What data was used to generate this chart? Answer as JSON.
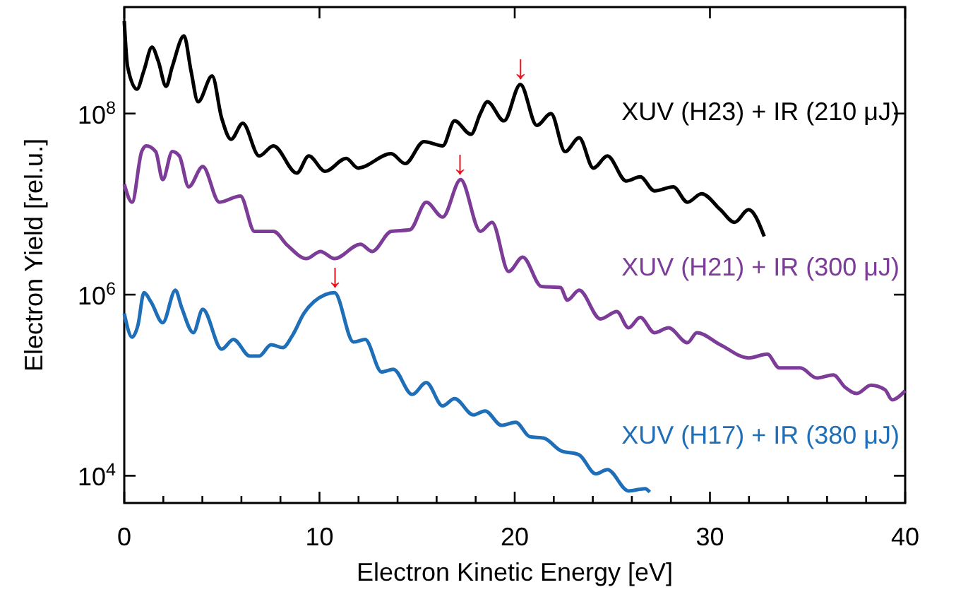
{
  "chart_data": {
    "type": "line",
    "xlabel": "Electron Kinetic Energy [eV]",
    "ylabel": "Electron Yield [rel.u.]",
    "log": "y",
    "xlim": [
      0,
      40
    ],
    "xticks": [
      0,
      {
        "value": 2,
        "label": null
      },
      {
        "value": 4,
        "label": null
      },
      {
        "value": 6,
        "label": null
      },
      {
        "value": 8,
        "label": null
      },
      10,
      {
        "value": 12,
        "label": null
      },
      {
        "value": 14,
        "label": null
      },
      {
        "value": 16,
        "label": null
      },
      {
        "value": 18,
        "label": null
      },
      20,
      {
        "value": 22,
        "label": null
      },
      {
        "value": 24,
        "label": null
      },
      {
        "value": 26,
        "label": null
      },
      {
        "value": 28,
        "label": null
      },
      30,
      {
        "value": 32,
        "label": null
      },
      {
        "value": 34,
        "label": null
      },
      {
        "value": 36,
        "label": null
      },
      {
        "value": 38,
        "label": null
      },
      40
    ],
    "ylim": [
      5000,
      1500000000
    ],
    "yticks": [
      {
        "value": 10000,
        "label": "10$^{4}$"
      },
      {
        "value": 1000000,
        "label": "10$^{6}$"
      },
      {
        "value": 100000000,
        "label": "10$^{8}$"
      }
    ],
    "series": [
      {
        "name": "XUV (H23) + IR (210 μJ)",
        "color": "#000000",
        "x": [
          0,
          0.17,
          0.65,
          1.0,
          1.42,
          1.74,
          2.14,
          2.46,
          3.06,
          3.42,
          3.78,
          4.5,
          4.99,
          5.47,
          6.07,
          6.91,
          7.64,
          8.84,
          9.45,
          10.29,
          11.37,
          11.97,
          13.67,
          14.39,
          15.35,
          16.31,
          16.92,
          17.76,
          18.24,
          18.6,
          19.45,
          20.29,
          21.13,
          21.86,
          22.58,
          23.3,
          24.03,
          24.75,
          25.71,
          26.43,
          27.16,
          28.12,
          28.85,
          29.57,
          30.53,
          31.26,
          31.98,
          32.78
        ],
        "values": [
          1050000000.0,
          330000000.0,
          186000000.0,
          295000000.0,
          540000000.0,
          380000000.0,
          200000000.0,
          330000000.0,
          720000000.0,
          295000000.0,
          135000000.0,
          260000000.0,
          89000000.0,
          52000000.0,
          78000000.0,
          34000000.0,
          44000000.0,
          22000000.0,
          34000000.0,
          23000000.0,
          32000000.0,
          25000000.0,
          36000000.0,
          28000000.0,
          49000000.0,
          44000000.0,
          83000000.0,
          59000000.0,
          100000000.0,
          135000000.0,
          83000000.0,
          210000000.0,
          74000000.0,
          100000000.0,
          38000000.0,
          54000000.0,
          25000000.0,
          34000000.0,
          18000000.0,
          20000000.0,
          14000000.0,
          15500000.0,
          10500000.0,
          13000000.0,
          8700000.0,
          6300000.0,
          8700000.0,
          4400000.0
        ]
      },
      {
        "name": "XUV (H21) + IR (300 μJ)",
        "color": "#7d3c98",
        "x": [
          0,
          0.4,
          0.89,
          1.13,
          1.61,
          1.97,
          2.46,
          2.82,
          3.3,
          4.02,
          4.87,
          5.95,
          6.67,
          7.64,
          8.36,
          9.33,
          10.05,
          10.77,
          12.1,
          12.7,
          13.67,
          14.63,
          15.47,
          16.31,
          17.23,
          18.24,
          18.84,
          19.69,
          20.41,
          21.37,
          22.34,
          22.7,
          23.3,
          24.39,
          25.23,
          25.83,
          26.43,
          27.16,
          27.88,
          28.85,
          29.33,
          30.53,
          31.98,
          32.94,
          33.55,
          34.63,
          35.47,
          36.32,
          36.92,
          37.52,
          38.25,
          38.97,
          39.33,
          40
        ],
        "values": [
          16600000.0,
          10500000.0,
          38000000.0,
          44000000.0,
          38000000.0,
          18600000.0,
          38000000.0,
          34000000.0,
          15500000.0,
          26000000.0,
          10500000.0,
          12300000.0,
          5000000.0,
          5000000.0,
          3500000.0,
          2500000.0,
          3000000.0,
          2500000.0,
          3600000.0,
          3000000.0,
          5000000.0,
          5200000.0,
          10500000.0,
          7200000.0,
          18600000.0,
          5000000.0,
          6300000.0,
          1800000.0,
          2600000.0,
          1230000.0,
          1200000.0,
          870000.0,
          1120000.0,
          540000.0,
          650000.0,
          430000.0,
          560000.0,
          380000.0,
          430000.0,
          295000.0,
          380000.0,
          280000.0,
          200000.0,
          220000.0,
          155000.0,
          155000.0,
          120000.0,
          130000.0,
          95000.0,
          81000.0,
          100000.0,
          89000.0,
          69000.0,
          87000.0
        ]
      },
      {
        "name": "XUV (H17) + IR (380 μJ)",
        "color": "#1f6fb8",
        "x": [
          0,
          0.4,
          0.7,
          1.01,
          1.37,
          1.97,
          2.62,
          2.94,
          3.54,
          4.02,
          4.99,
          5.59,
          6.43,
          6.91,
          7.52,
          8.12,
          8.6,
          9.2,
          10.29,
          10.77,
          11.74,
          12.34,
          13.18,
          13.78,
          14.75,
          15.47,
          16.31,
          16.92,
          17.88,
          18.48,
          19.33,
          20.05,
          20.77,
          21.5,
          22.34,
          23.3,
          24.15,
          24.75,
          25.83,
          26.68,
          26.92
        ],
        "values": [
          620000.0,
          340000.0,
          460000.0,
          1050000.0,
          830000.0,
          490000.0,
          1120000.0,
          720000.0,
          380000.0,
          690000.0,
          250000.0,
          320000.0,
          210000.0,
          210000.0,
          280000.0,
          260000.0,
          350000.0,
          620000.0,
          1000000.0,
          1050000.0,
          300000.0,
          320000.0,
          140000.0,
          150000.0,
          79000.0,
          107000.0,
          59000.0,
          71000.0,
          47000.0,
          52000.0,
          36000.0,
          39000.0,
          27000.0,
          26000.0,
          19000.0,
          17000.0,
          10500.0,
          11700.0,
          6800.0,
          7200.0,
          6600.0
        ]
      }
    ],
    "annotations": [
      {
        "text": "↓",
        "x": 20.3,
        "y": 210000000.0
      },
      {
        "text": "↓",
        "x": 17.2,
        "y": 18600000.0
      },
      {
        "text": "↓",
        "x": 10.8,
        "y": 1050000.0
      }
    ]
  }
}
